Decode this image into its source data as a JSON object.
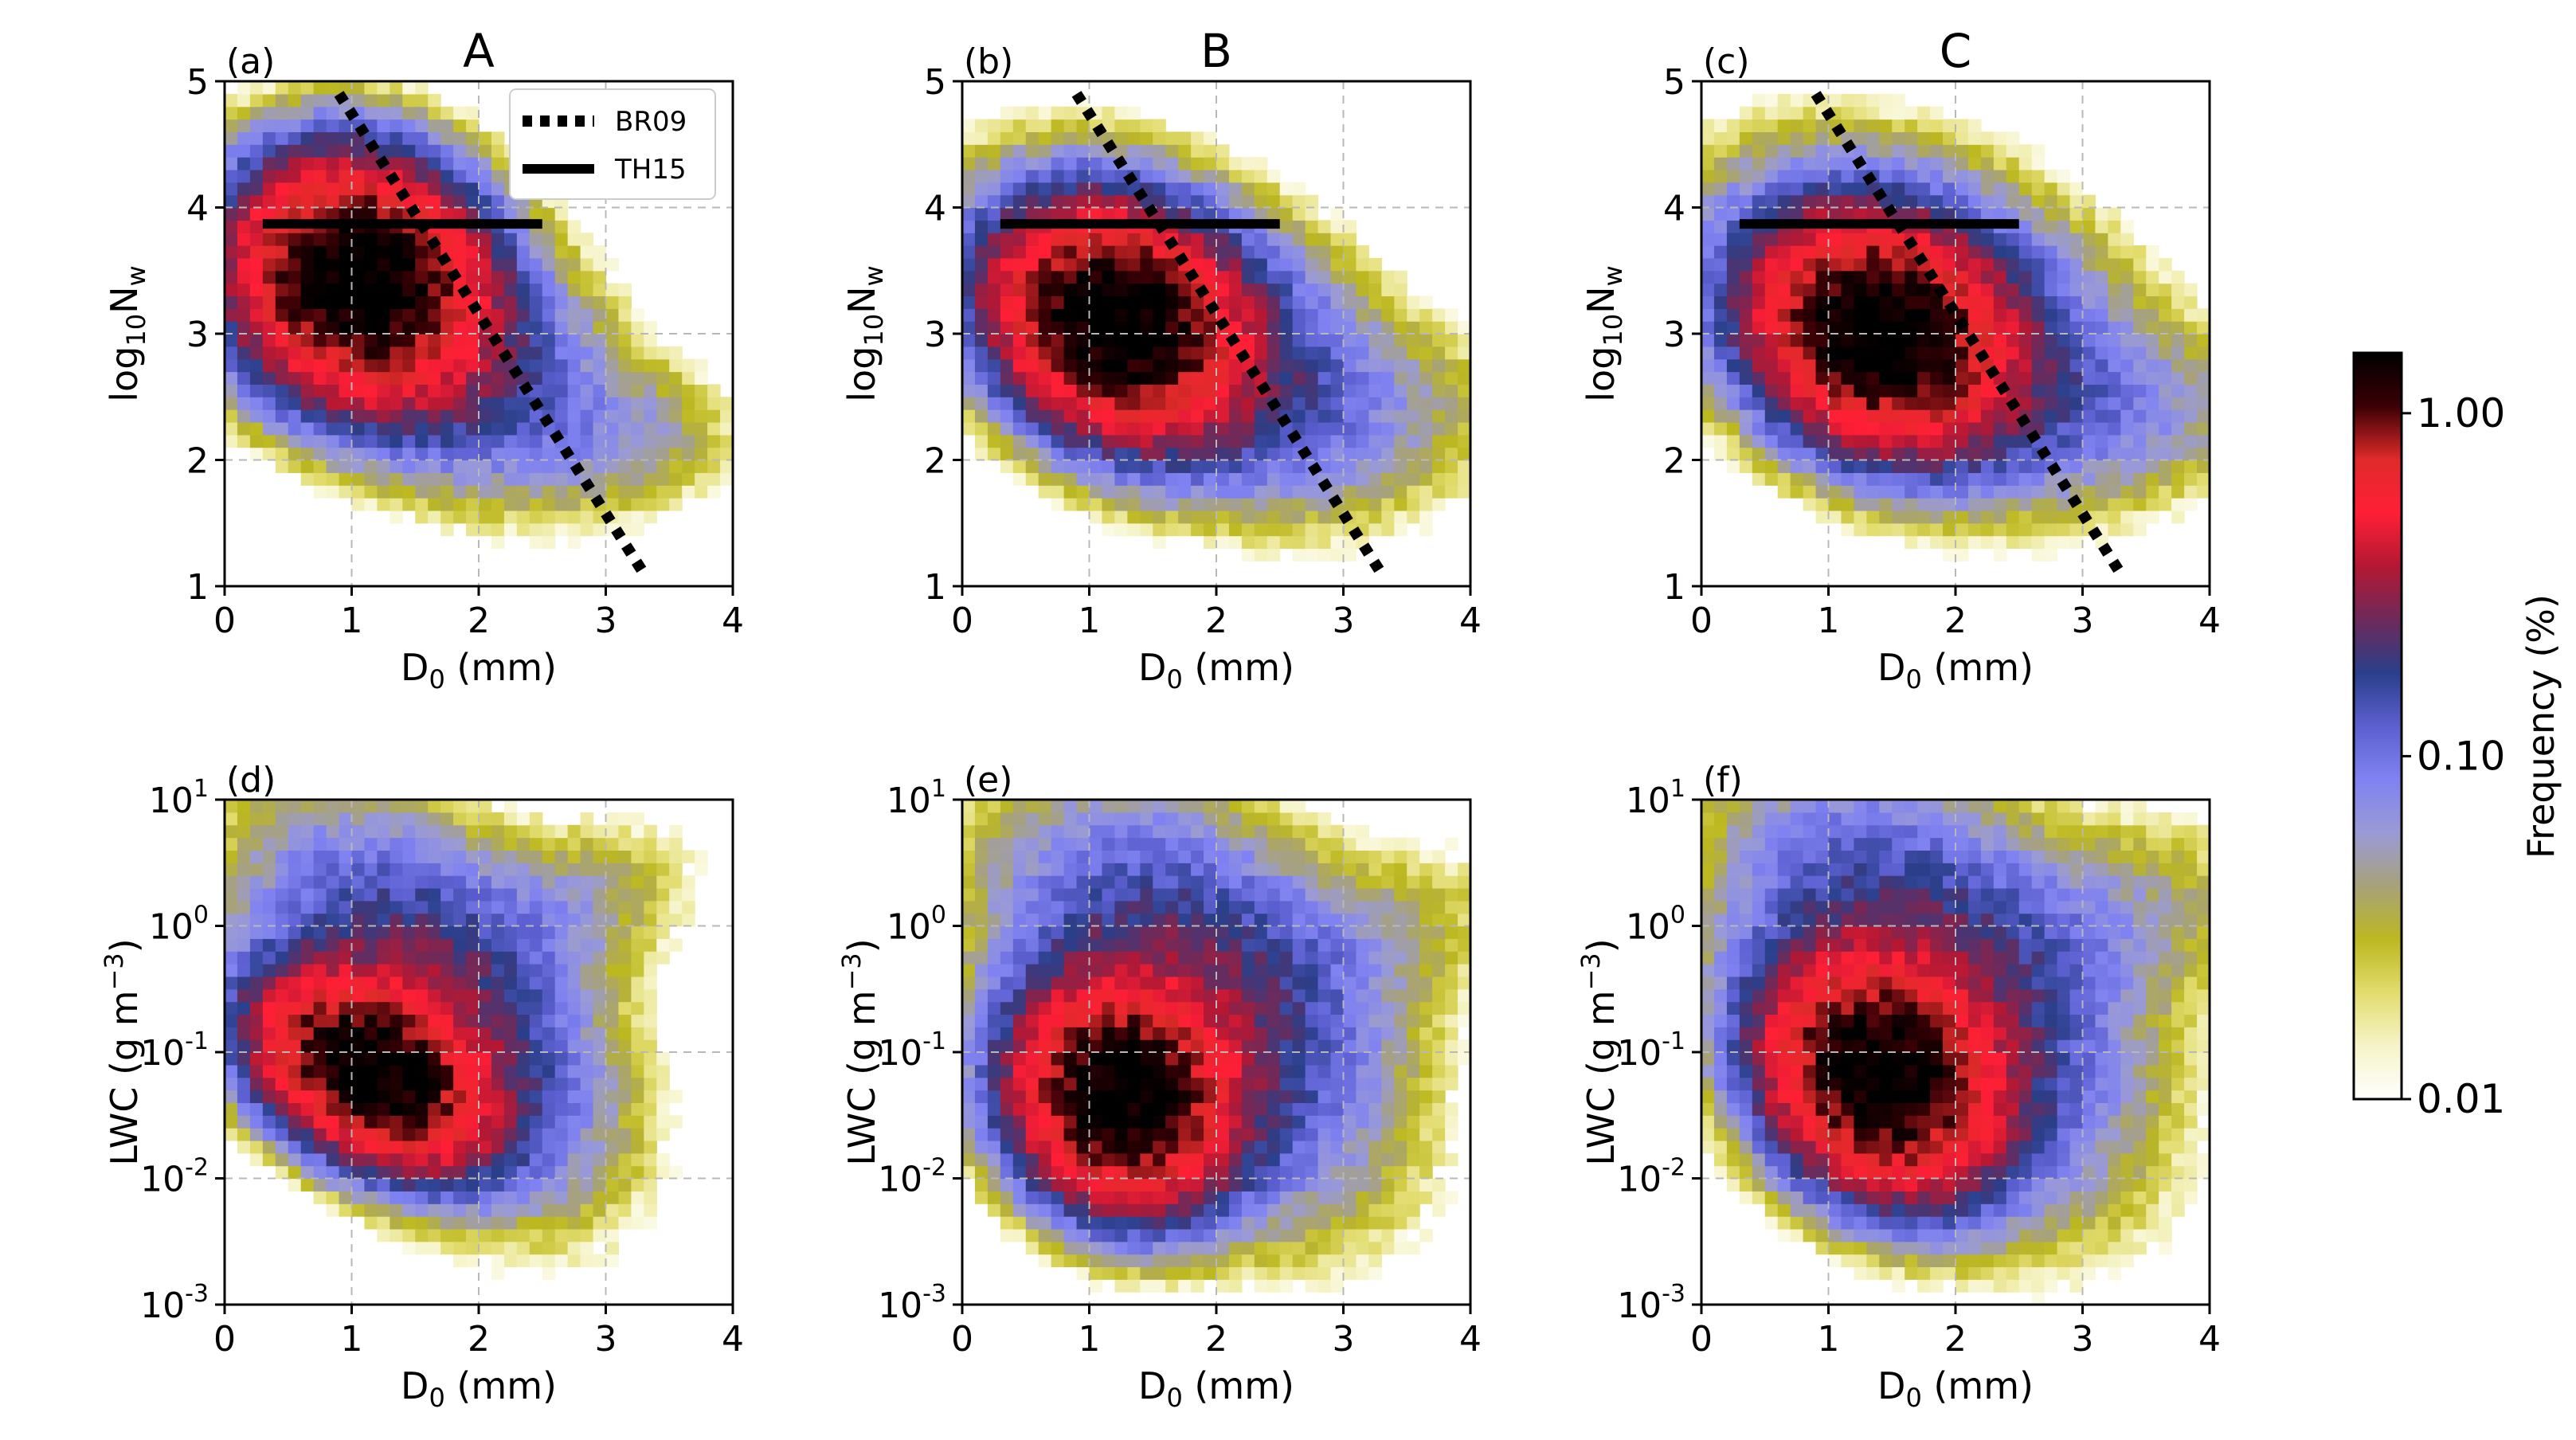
{
  "figure": {
    "column_titles": [
      "A",
      "B",
      "C"
    ],
    "colorbar": {
      "label": "Frequency (%)",
      "tick_labels": [
        "1.00",
        "0.10",
        "0.01"
      ],
      "tick_values": [
        1.0,
        0.1,
        0.01
      ],
      "range": [
        0.01,
        1.5
      ],
      "scale": "log",
      "stops": [
        "#ffffff",
        "#f6f4c8",
        "#e2dc6e",
        "#bcb820",
        "#a7a27a",
        "#9a9ad6",
        "#7f82f0",
        "#5c5fcf",
        "#2a3f8a",
        "#6e2a5a",
        "#b41834",
        "#ff1f36",
        "#e02a2a",
        "#3a0005",
        "#000000"
      ]
    }
  },
  "legend": {
    "entries": [
      {
        "label": "BR09",
        "style": "dotted"
      },
      {
        "label": "TH15",
        "style": "solid"
      }
    ]
  },
  "chart_data": [
    {
      "type": "heatmap",
      "panel_label": "(a)",
      "title": "A",
      "xlabel": "D",
      "xlabel_sub": "0",
      "xlabel_tail": " (mm)",
      "ylabel_main": "log",
      "ylabel_sub": "10",
      "ylabel_tail": "N",
      "ylabel_sub2": "w",
      "xlim": [
        0,
        4
      ],
      "ylim": [
        1,
        5
      ],
      "xticks": [
        "0",
        "1",
        "2",
        "3",
        "4"
      ],
      "yticks": [
        "1",
        "2",
        "3",
        "4",
        "5"
      ],
      "blobs": [
        {
          "x": 1.05,
          "y": 3.45,
          "sx": 0.55,
          "sy": 0.5,
          "angle": -38,
          "peak": 1.6
        },
        {
          "x": 1.5,
          "y": 3.0,
          "sx": 0.9,
          "sy": 0.55,
          "angle": -30,
          "peak": 0.25
        },
        {
          "x": 3.2,
          "y": 2.2,
          "sx": 0.55,
          "sy": 0.35,
          "angle": 0,
          "peak": 0.04
        }
      ],
      "lines": {
        "BR09": {
          "x": [
            0.9,
            3.3
          ],
          "y": [
            4.9,
            1.1
          ]
        },
        "TH15": {
          "x": [
            0.3,
            2.5
          ],
          "y": [
            3.87,
            3.87
          ]
        }
      }
    },
    {
      "type": "heatmap",
      "panel_label": "(b)",
      "title": "B",
      "xlabel": "D",
      "xlabel_sub": "0",
      "xlabel_tail": " (mm)",
      "ylabel_main": "log",
      "ylabel_sub": "10",
      "ylabel_tail": "N",
      "ylabel_sub2": "w",
      "xlim": [
        0,
        4
      ],
      "ylim": [
        1,
        5
      ],
      "xticks": [
        "0",
        "1",
        "2",
        "3",
        "4"
      ],
      "yticks": [
        "1",
        "2",
        "3",
        "4",
        "5"
      ],
      "blobs": [
        {
          "x": 1.2,
          "y": 3.1,
          "sx": 0.55,
          "sy": 0.45,
          "angle": -35,
          "peak": 1.6
        },
        {
          "x": 1.7,
          "y": 3.0,
          "sx": 0.95,
          "sy": 0.6,
          "angle": -30,
          "peak": 0.25
        },
        {
          "x": 3.1,
          "y": 2.4,
          "sx": 0.9,
          "sy": 0.45,
          "angle": 0,
          "peak": 0.035
        }
      ],
      "lines": {
        "BR09": {
          "x": [
            0.9,
            3.3
          ],
          "y": [
            4.9,
            1.1
          ]
        },
        "TH15": {
          "x": [
            0.3,
            2.5
          ],
          "y": [
            3.87,
            3.87
          ]
        }
      }
    },
    {
      "type": "heatmap",
      "panel_label": "(c)",
      "title": "C",
      "xlabel": "D",
      "xlabel_sub": "0",
      "xlabel_tail": " (mm)",
      "ylabel_main": "log",
      "ylabel_sub": "10",
      "ylabel_tail": "N",
      "ylabel_sub2": "w",
      "xlim": [
        0,
        4
      ],
      "ylim": [
        1,
        5
      ],
      "xticks": [
        "0",
        "1",
        "2",
        "3",
        "4"
      ],
      "yticks": [
        "1",
        "2",
        "3",
        "4",
        "5"
      ],
      "blobs": [
        {
          "x": 1.4,
          "y": 3.0,
          "sx": 0.55,
          "sy": 0.45,
          "angle": -30,
          "peak": 1.6
        },
        {
          "x": 1.7,
          "y": 3.1,
          "sx": 1.0,
          "sy": 0.65,
          "angle": -25,
          "peak": 0.25
        },
        {
          "x": 3.2,
          "y": 2.4,
          "sx": 0.9,
          "sy": 0.4,
          "angle": 0,
          "peak": 0.05
        }
      ],
      "lines": {
        "BR09": {
          "x": [
            0.9,
            3.3
          ],
          "y": [
            4.9,
            1.1
          ]
        },
        "TH15": {
          "x": [
            0.3,
            2.5
          ],
          "y": [
            3.87,
            3.87
          ]
        }
      }
    },
    {
      "type": "heatmap",
      "panel_label": "(d)",
      "title": "",
      "xlabel": "D",
      "xlabel_sub": "0",
      "xlabel_tail": " (mm)",
      "ylabel_main": "LWC (g m",
      "ylabel_sup": "−3",
      "ylabel_close": ")",
      "xlim": [
        0,
        4
      ],
      "ylim_log10": [
        -3,
        1
      ],
      "xticks": [
        "0",
        "1",
        "2",
        "3",
        "4"
      ],
      "yticks_exp": [
        "-3",
        "-2",
        "-1",
        "0",
        "1"
      ],
      "blobs": [
        {
          "x": 1.15,
          "y": -1.15,
          "sx": 0.35,
          "sy": 0.55,
          "angle": 60,
          "peak": 1.6
        },
        {
          "x": 1.6,
          "y": -0.6,
          "sx": 0.6,
          "sy": 1.0,
          "angle": 40,
          "peak": 0.25
        },
        {
          "x": 2.6,
          "y": 0.1,
          "sx": 0.7,
          "sy": 0.4,
          "angle": 20,
          "peak": 0.05
        }
      ]
    },
    {
      "type": "heatmap",
      "panel_label": "(e)",
      "title": "",
      "xlabel": "D",
      "xlabel_sub": "0",
      "xlabel_tail": " (mm)",
      "ylabel_main": "LWC (g m",
      "ylabel_sup": "−3",
      "ylabel_close": ")",
      "xlim": [
        0,
        4
      ],
      "ylim_log10": [
        -3,
        1
      ],
      "xticks": [
        "0",
        "1",
        "2",
        "3",
        "4"
      ],
      "yticks_exp": [
        "-3",
        "-2",
        "-1",
        "0",
        "1"
      ],
      "blobs": [
        {
          "x": 1.25,
          "y": -1.35,
          "sx": 0.45,
          "sy": 0.5,
          "angle": 40,
          "peak": 1.6
        },
        {
          "x": 1.8,
          "y": -0.6,
          "sx": 0.7,
          "sy": 1.05,
          "angle": 40,
          "peak": 0.25
        },
        {
          "x": 3.0,
          "y": -0.2,
          "sx": 0.9,
          "sy": 0.45,
          "angle": 20,
          "peak": 0.04
        }
      ]
    },
    {
      "type": "heatmap",
      "panel_label": "(f)",
      "title": "",
      "xlabel": "D",
      "xlabel_sub": "0",
      "xlabel_tail": " (mm)",
      "ylabel_main": "LWC (g m",
      "ylabel_sup": "−3",
      "ylabel_close": ")",
      "xlim": [
        0,
        4
      ],
      "ylim_log10": [
        -3,
        1
      ],
      "xticks": [
        "0",
        "1",
        "2",
        "3",
        "4"
      ],
      "yticks_exp": [
        "-3",
        "-2",
        "-1",
        "0",
        "1"
      ],
      "blobs": [
        {
          "x": 1.4,
          "y": -1.2,
          "sx": 0.45,
          "sy": 0.55,
          "angle": 45,
          "peak": 1.6
        },
        {
          "x": 1.8,
          "y": -0.5,
          "sx": 0.7,
          "sy": 1.1,
          "angle": 40,
          "peak": 0.25
        },
        {
          "x": 3.1,
          "y": 0.0,
          "sx": 0.9,
          "sy": 0.5,
          "angle": 15,
          "peak": 0.05
        }
      ]
    }
  ]
}
